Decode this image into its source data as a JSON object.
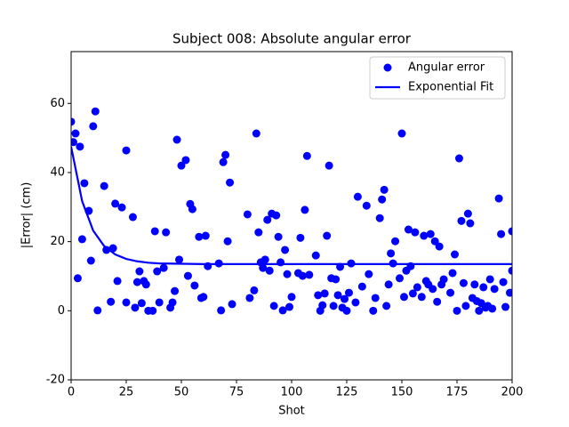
{
  "chart_data": {
    "type": "scatter",
    "title": "Subject 008: Absolute angular error",
    "x_label": "Shot",
    "y_label": "|Error| (cm)",
    "xlim": [
      0,
      200
    ],
    "ylim": [
      -20,
      75
    ],
    "xticks": [
      0,
      25,
      50,
      75,
      100,
      125,
      150,
      175,
      200
    ],
    "yticks": [
      -20,
      0,
      20,
      40,
      60
    ],
    "legend": "upper right",
    "series": [
      {
        "name": "Angular error",
        "color": "#0000ff",
        "mode": "markers",
        "x": [
          0,
          1,
          2,
          3,
          4,
          5,
          6,
          8,
          9,
          10,
          11,
          12,
          15,
          16,
          18,
          19,
          20,
          21,
          23,
          25,
          25,
          28,
          29,
          30,
          31,
          32,
          33,
          34,
          35,
          37,
          38,
          39,
          40,
          42,
          43,
          45,
          46,
          47,
          48,
          49,
          50,
          52,
          53,
          54,
          55,
          56,
          58,
          59,
          60,
          61,
          62,
          67,
          68,
          69,
          70,
          71,
          72,
          73,
          80,
          81,
          83,
          84,
          85,
          86,
          87,
          88,
          89,
          90,
          91,
          92,
          93,
          94,
          95,
          96,
          97,
          98,
          99,
          100,
          103,
          104,
          105,
          106,
          107,
          108,
          111,
          112,
          113,
          114,
          115,
          116,
          117,
          118,
          119,
          120,
          121,
          122,
          123,
          124,
          125,
          126,
          127,
          129,
          130,
          132,
          134,
          135,
          137,
          138,
          140,
          141,
          142,
          143,
          144,
          145,
          146,
          147,
          149,
          150,
          151,
          152,
          153,
          154,
          155,
          156,
          157,
          159,
          160,
          161,
          162,
          163,
          164,
          165,
          166,
          167,
          168,
          169,
          172,
          173,
          174,
          175,
          176,
          177,
          178,
          179,
          180,
          181,
          182,
          183,
          184,
          185,
          186,
          187,
          188,
          189,
          190,
          191,
          192,
          194,
          195,
          196,
          197,
          199,
          200,
          200
        ],
        "values": [
          54.7,
          48.8,
          51.3,
          9.4,
          47.5,
          20.7,
          36.9,
          28.9,
          14.5,
          53.4,
          57.7,
          0.1,
          36.1,
          17.6,
          2.6,
          18.1,
          31,
          8.6,
          29.9,
          46.4,
          2.4,
          27.1,
          0.9,
          8.3,
          11.4,
          2.2,
          8.6,
          7.6,
          0,
          0,
          23,
          11.4,
          2.4,
          12.4,
          22.7,
          0.9,
          2.4,
          5.7,
          49.5,
          14.8,
          42,
          43.6,
          10.1,
          30.9,
          29.4,
          7.3,
          21.4,
          3.7,
          4,
          21.7,
          12.9,
          13.7,
          0.1,
          43,
          45.1,
          20.1,
          37.1,
          1.9,
          27.9,
          3.7,
          5.9,
          51.3,
          22.7,
          14,
          12.4,
          14.8,
          26.3,
          11.6,
          28.1,
          1.4,
          27.6,
          21.4,
          14,
          0.1,
          17.6,
          10.6,
          1.1,
          4,
          10.9,
          21.1,
          10.1,
          29.2,
          44.8,
          10.4,
          16,
          4.5,
          0,
          1.6,
          5,
          21.7,
          42,
          9.4,
          1.4,
          9.1,
          4.5,
          12.7,
          0.9,
          3.4,
          0,
          5.2,
          13.7,
          2.4,
          33,
          7,
          30.4,
          10.6,
          0,
          3.7,
          26.8,
          32.2,
          35,
          1.4,
          7.6,
          16.6,
          13.7,
          20.1,
          9.4,
          51.3,
          4,
          11.6,
          23.5,
          12.9,
          5,
          22.7,
          6.8,
          4,
          21.7,
          8.6,
          7.6,
          22.2,
          6.3,
          20.1,
          2.6,
          18.6,
          7.6,
          9.1,
          5.2,
          10.9,
          16.3,
          0,
          44.1,
          26,
          8,
          1.4,
          28.1,
          25.3,
          3.7,
          7.6,
          2.8,
          0,
          2.2,
          6.8,
          0.9,
          1.4,
          9.1,
          0.6,
          6.3,
          32.5,
          22.2,
          8.3,
          1.1,
          5.2,
          23,
          11.6
        ]
      },
      {
        "name": "Exponential Fit",
        "color": "#0000ff",
        "mode": "line",
        "x": [
          0,
          5,
          10,
          15,
          20,
          25,
          30,
          35,
          40,
          50,
          60,
          80,
          100,
          120,
          140,
          160,
          180,
          200
        ],
        "values": [
          47.5,
          31.7,
          23.2,
          18.7,
          16.3,
          15.0,
          14.3,
          13.9,
          13.7,
          13.6,
          13.5,
          13.5,
          13.5,
          13.5,
          13.5,
          13.5,
          13.5,
          13.5
        ]
      }
    ]
  }
}
